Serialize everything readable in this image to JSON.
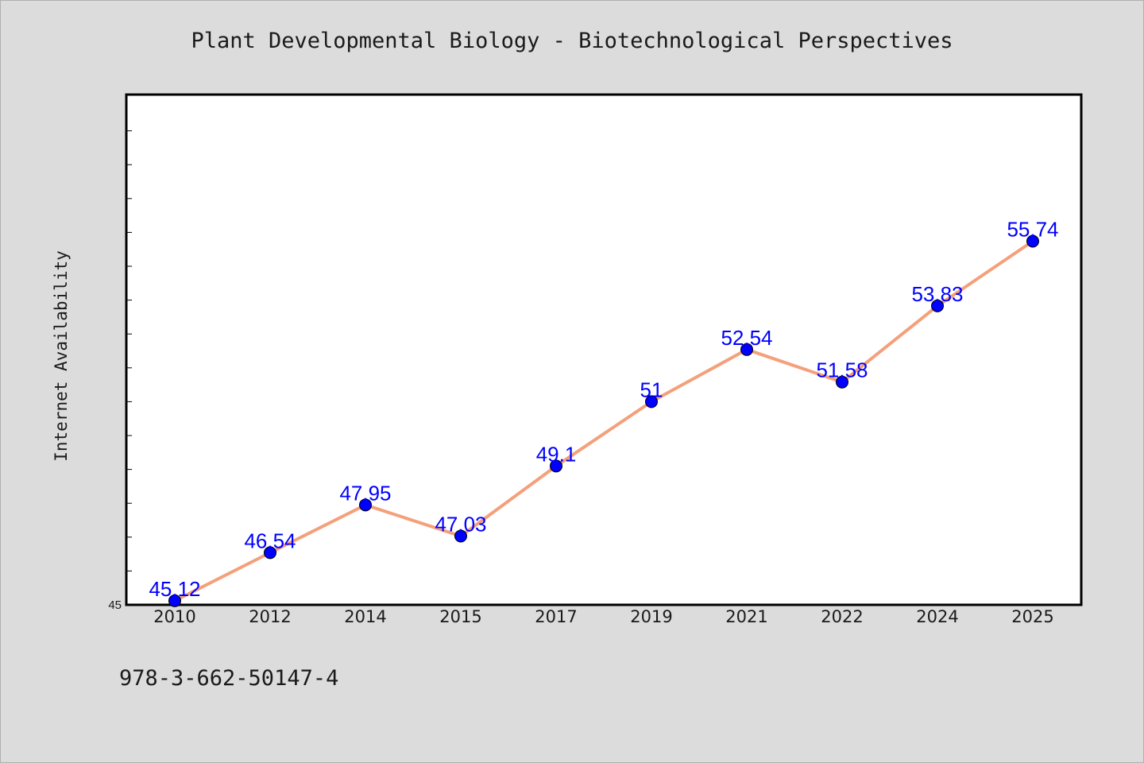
{
  "colors": {
    "background": "#dcdcdc",
    "plot_background": "#ffffff",
    "line": "#f4a07a",
    "marker": "#0000ff",
    "data_label": "#0000ff",
    "text": "#1a1a1a"
  },
  "footer": {
    "isbn": "978-3-662-50147-4"
  },
  "chart_data": {
    "type": "line",
    "title": "Plant Developmental Biology - Biotechnological Perspectives",
    "xlabel": "",
    "ylabel": "Internet Availability",
    "categories": [
      "2010",
      "2012",
      "2014",
      "2015",
      "2017",
      "2019",
      "2021",
      "2022",
      "2024",
      "2025"
    ],
    "series": [
      {
        "values": [
          45.12,
          46.54,
          47.95,
          47.03,
          49.1,
          51,
          52.54,
          51.58,
          53.83,
          55.74
        ]
      }
    ],
    "data_labels": [
      "45.12",
      "46.54",
      "47.95",
      "47.03",
      "49.1",
      "51",
      "52.54",
      "51.58",
      "53.83",
      "55.74"
    ],
    "ylim": [
      45,
      60
    ],
    "y_tick_labels": [
      "45"
    ],
    "grid": false,
    "legend": "none"
  }
}
